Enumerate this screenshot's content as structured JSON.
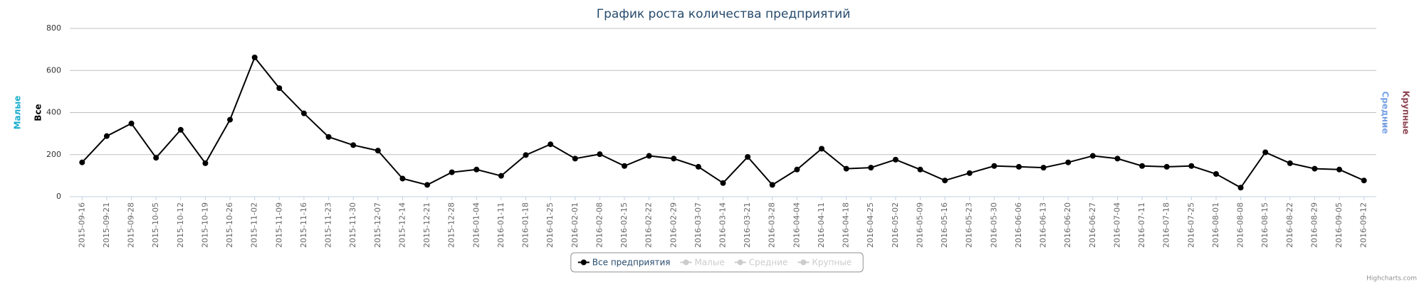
{
  "chart_data": {
    "type": "line",
    "title": "График роста количества предприятий",
    "categories": [
      "2015-09-16",
      "2015-09-21",
      "2015-09-28",
      "2015-10-05",
      "2015-10-12",
      "2015-10-19",
      "2015-10-26",
      "2015-11-02",
      "2015-11-09",
      "2015-11-16",
      "2015-11-23",
      "2015-11-30",
      "2015-12-07",
      "2015-12-14",
      "2015-12-21",
      "2015-12-28",
      "2016-01-04",
      "2016-01-11",
      "2016-01-18",
      "2016-01-25",
      "2016-02-01",
      "2016-02-08",
      "2016-02-15",
      "2016-02-22",
      "2016-02-29",
      "2016-03-07",
      "2016-03-14",
      "2016-03-21",
      "2016-03-28",
      "2016-04-04",
      "2016-04-11",
      "2016-04-18",
      "2016-04-25",
      "2016-05-02",
      "2016-05-09",
      "2016-05-16",
      "2016-05-23",
      "2016-05-30",
      "2016-06-06",
      "2016-06-13",
      "2016-06-20",
      "2016-06-27",
      "2016-07-04",
      "2016-07-11",
      "2016-07-18",
      "2016-07-25",
      "2016-08-01",
      "2016-08-08",
      "2016-08-15",
      "2016-08-22",
      "2016-08-29",
      "2016-09-05",
      "2016-09-12"
    ],
    "series": [
      {
        "name": "Все предприятия",
        "color": "#000000",
        "visible": true,
        "values": [
          163,
          288,
          348,
          185,
          318,
          159,
          366,
          662,
          516,
          396,
          284,
          245,
          219,
          86,
          56,
          116,
          129,
          99,
          198,
          249,
          181,
          202,
          146,
          194,
          181,
          142,
          65,
          189,
          56,
          129,
          228,
          133,
          138,
          176,
          129,
          77,
          112,
          146,
          142,
          138,
          163,
          194,
          181,
          146,
          142,
          146,
          108,
          43,
          211,
          159,
          133,
          129,
          77
        ]
      },
      {
        "name": "Малые",
        "color": "#2f7ed8",
        "visible": false
      },
      {
        "name": "Средние",
        "color": "#0d233a",
        "visible": false
      },
      {
        "name": "Крупные",
        "color": "#8bbc21",
        "visible": false
      }
    ],
    "ylim": [
      0,
      800
    ],
    "yticks": [
      0,
      200,
      400,
      600,
      800
    ],
    "grid": true,
    "axis_titles_left": [
      {
        "text": "Малые",
        "color": "#1aadce"
      },
      {
        "text": "Все",
        "color": "#000000"
      }
    ],
    "axis_titles_right": [
      {
        "text": "Средние",
        "color": "#77a1e5"
      },
      {
        "text": "Крупные",
        "color": "#8d4653"
      }
    ],
    "credits": "Highcharts.com"
  }
}
